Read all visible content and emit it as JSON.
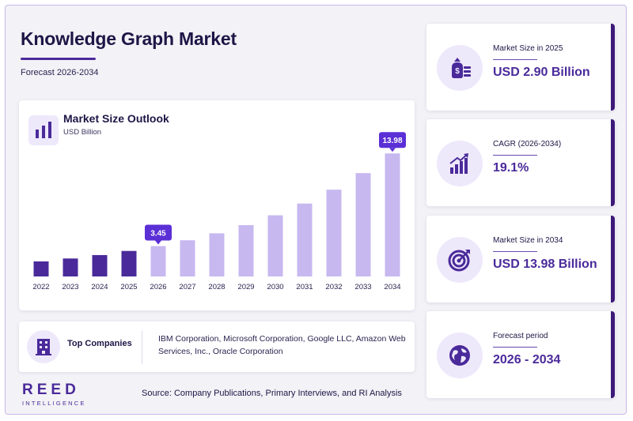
{
  "header": {
    "title": "Knowledge Graph Market",
    "subtitle": "Forecast 2026-2034"
  },
  "chart_data": {
    "type": "bar",
    "title": "Market Size Outlook",
    "unit_label": "USD Billion",
    "categories": [
      "2022",
      "2023",
      "2024",
      "2025",
      "2026",
      "2027",
      "2028",
      "2029",
      "2030",
      "2031",
      "2032",
      "2033",
      "2034"
    ],
    "values": [
      1.71,
      2.04,
      2.43,
      2.9,
      3.45,
      4.11,
      4.9,
      5.83,
      6.95,
      8.28,
      9.86,
      11.74,
      13.98
    ],
    "ylim": [
      0,
      14
    ],
    "grid": false,
    "historical_color": "#4a2a9a",
    "forecast_color": "#c7b8f0",
    "callout_color": "#5b2fd6",
    "callouts": [
      {
        "category": "2026",
        "label": "3.45"
      },
      {
        "category": "2034",
        "label": "13.98"
      }
    ]
  },
  "companies": {
    "label": "Top Companies",
    "text": "IBM Corporation, Microsoft Corporation, Google LLC, Amazon Web Services, Inc., Oracle Corporation",
    "icon": "building-icon"
  },
  "stats": [
    {
      "label": "Market Size in 2025",
      "value": "USD 2.90 Billion",
      "icon": "money-bag-icon"
    },
    {
      "label": "CAGR (2026-2034)",
      "value": "19.1%",
      "icon": "growth-chart-icon"
    },
    {
      "label": "Market Size in 2034",
      "value": "USD 13.98 Billion",
      "icon": "target-icon"
    },
    {
      "label": "Forecast period",
      "value": "2026 - 2034",
      "icon": "globe-icon"
    }
  ],
  "brand": {
    "name": "REED",
    "tagline": "INTELLIGENCE"
  },
  "source": "Source: Company Publications, Primary Interviews, and RI Analysis",
  "colors": {
    "accent": "#4a2a9a",
    "dark_accent": "#3d1a7a",
    "icon_bg": "#eee8fb",
    "title_text": "#1d1646"
  }
}
